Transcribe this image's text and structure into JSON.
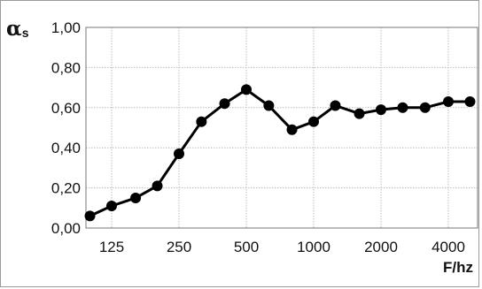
{
  "chart_data": {
    "type": "line",
    "title": "",
    "ylabel": "α",
    "ylabel_subscript": "s",
    "xlabel": "F/hz",
    "ylim": [
      0,
      1.0
    ],
    "y_ticks": [
      "0,00",
      "0,20",
      "0,40",
      "0,60",
      "0,80",
      "1,00"
    ],
    "x_ticks": [
      {
        "label": "125",
        "value": 125
      },
      {
        "label": "250",
        "value": 250
      },
      {
        "label": "500",
        "value": 500
      },
      {
        "label": "1000",
        "value": 1000
      },
      {
        "label": "2000",
        "value": 2000
      },
      {
        "label": "4000",
        "value": 4000
      }
    ],
    "x_scale": "log",
    "grid": true,
    "line_color": "#000000",
    "series": [
      {
        "x": [
          100,
          125,
          160,
          200,
          250,
          315,
          400,
          500,
          630,
          800,
          1000,
          1250,
          1600,
          2000,
          2500,
          3150,
          4000,
          5000
        ],
        "values": [
          0.06,
          0.11,
          0.15,
          0.21,
          0.37,
          0.53,
          0.62,
          0.69,
          0.61,
          0.49,
          0.53,
          0.61,
          0.57,
          0.59,
          0.6,
          0.6,
          0.63,
          0.63
        ]
      }
    ]
  }
}
